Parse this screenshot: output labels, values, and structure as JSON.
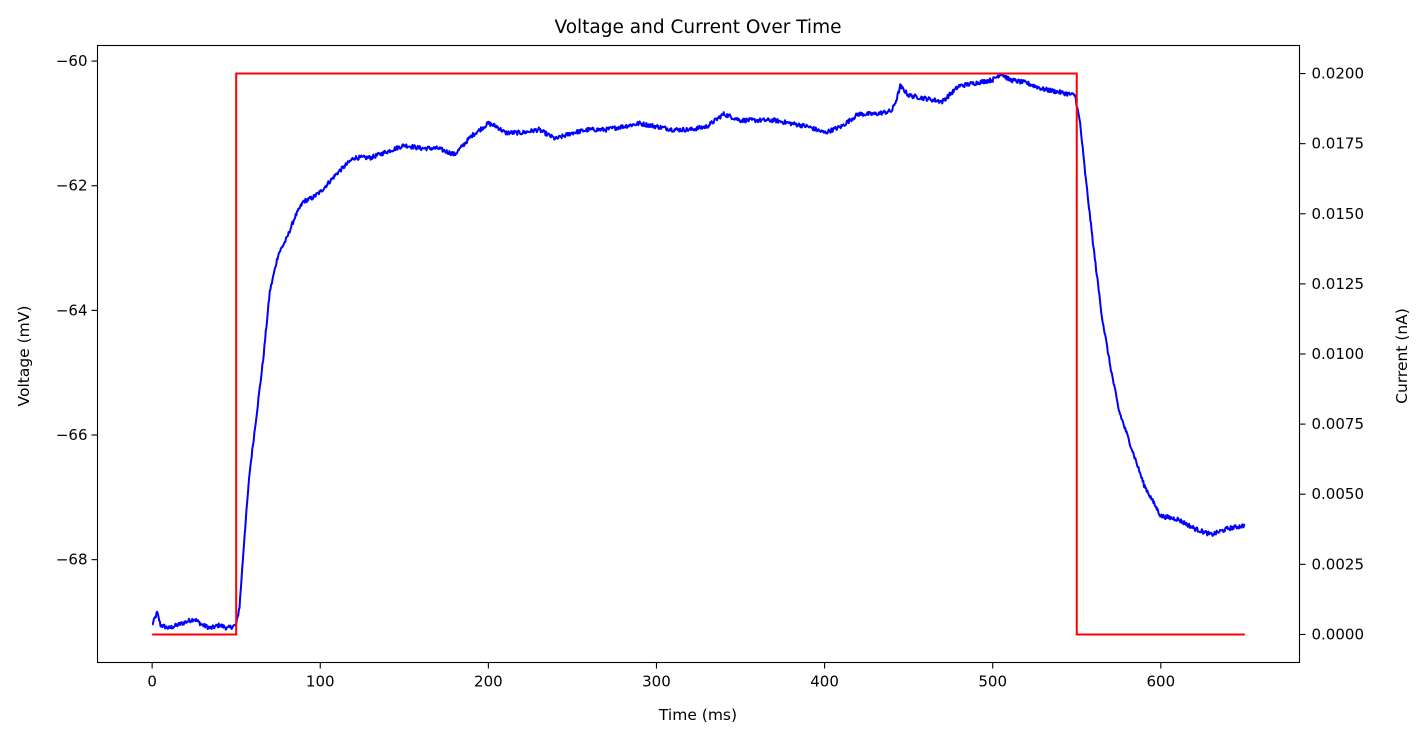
{
  "chart_data": {
    "type": "line",
    "title": "Voltage and Current Over Time",
    "xlabel": "Time (ms)",
    "ylabel_left": "Voltage (mV)",
    "ylabel_right": "Current (nA)",
    "xlim": [
      -32.5,
      682.5
    ],
    "ylim_left": [
      -69.65,
      -59.75
    ],
    "ylim_right": [
      -0.001,
      0.021
    ],
    "x_ticks": [
      0,
      100,
      200,
      300,
      400,
      500,
      600
    ],
    "x_tick_labels": [
      "0",
      "100",
      "200",
      "300",
      "400",
      "500",
      "600"
    ],
    "y_left_ticks": [
      -60,
      -62,
      -64,
      -66,
      -68
    ],
    "y_left_tick_labels": [
      "−60",
      "−62",
      "−64",
      "−66",
      "−68"
    ],
    "y_right_ticks": [
      0.02,
      0.0175,
      0.015,
      0.0125,
      0.01,
      0.0075,
      0.005,
      0.0025,
      0.0
    ],
    "y_right_tick_labels": [
      "0.0200",
      "0.0175",
      "0.0150",
      "0.0125",
      "0.0100",
      "0.0075",
      "0.0050",
      "0.0025",
      "0.0000"
    ],
    "grid": false,
    "colors": {
      "voltage": "#0000ff",
      "current": "#ff0000",
      "axes": "#000000"
    },
    "series": [
      {
        "axis": "left",
        "x": [
          0,
          3,
          5,
          10,
          15,
          20,
          25,
          30,
          35,
          40,
          45,
          50,
          52,
          55,
          58,
          62,
          66,
          70,
          75,
          80,
          85,
          90,
          95,
          100,
          110,
          120,
          130,
          140,
          150,
          160,
          170,
          180,
          190,
          200,
          205,
          210,
          220,
          230,
          240,
          250,
          260,
          270,
          280,
          290,
          300,
          310,
          320,
          330,
          340,
          350,
          360,
          370,
          380,
          390,
          400,
          410,
          420,
          430,
          440,
          443,
          445,
          450,
          460,
          470,
          480,
          490,
          500,
          505,
          510,
          520,
          530,
          540,
          549,
          552,
          555,
          560,
          565,
          570,
          575,
          580,
          590,
          600,
          610,
          620,
          630,
          640,
          650
        ],
        "y": [
          -69.05,
          -68.85,
          -69.05,
          -69.1,
          -69.05,
          -69.0,
          -68.95,
          -69.05,
          -69.1,
          -69.05,
          -69.1,
          -69.05,
          -68.75,
          -67.6,
          -66.6,
          -65.7,
          -64.8,
          -63.7,
          -63.1,
          -62.85,
          -62.5,
          -62.25,
          -62.2,
          -62.1,
          -61.8,
          -61.55,
          -61.55,
          -61.45,
          -61.35,
          -61.4,
          -61.4,
          -61.5,
          -61.2,
          -61.0,
          -61.05,
          -61.15,
          -61.15,
          -61.1,
          -61.25,
          -61.15,
          -61.1,
          -61.1,
          -61.05,
          -61.0,
          -61.05,
          -61.1,
          -61.1,
          -61.05,
          -60.85,
          -60.95,
          -60.95,
          -60.95,
          -61.0,
          -61.05,
          -61.15,
          -61.05,
          -60.85,
          -60.85,
          -60.8,
          -60.6,
          -60.4,
          -60.55,
          -60.6,
          -60.65,
          -60.4,
          -60.35,
          -60.3,
          -60.2,
          -60.3,
          -60.35,
          -60.45,
          -60.5,
          -60.55,
          -61.0,
          -61.8,
          -63.0,
          -64.1,
          -64.9,
          -65.6,
          -66.0,
          -66.8,
          -67.3,
          -67.35,
          -67.5,
          -67.6,
          -67.5,
          -67.45
        ]
      },
      {
        "axis": "right",
        "x": [
          0,
          50,
          50,
          550,
          550,
          650
        ],
        "y": [
          0.0,
          0.0,
          0.02,
          0.02,
          0.0,
          0.0
        ]
      }
    ]
  }
}
